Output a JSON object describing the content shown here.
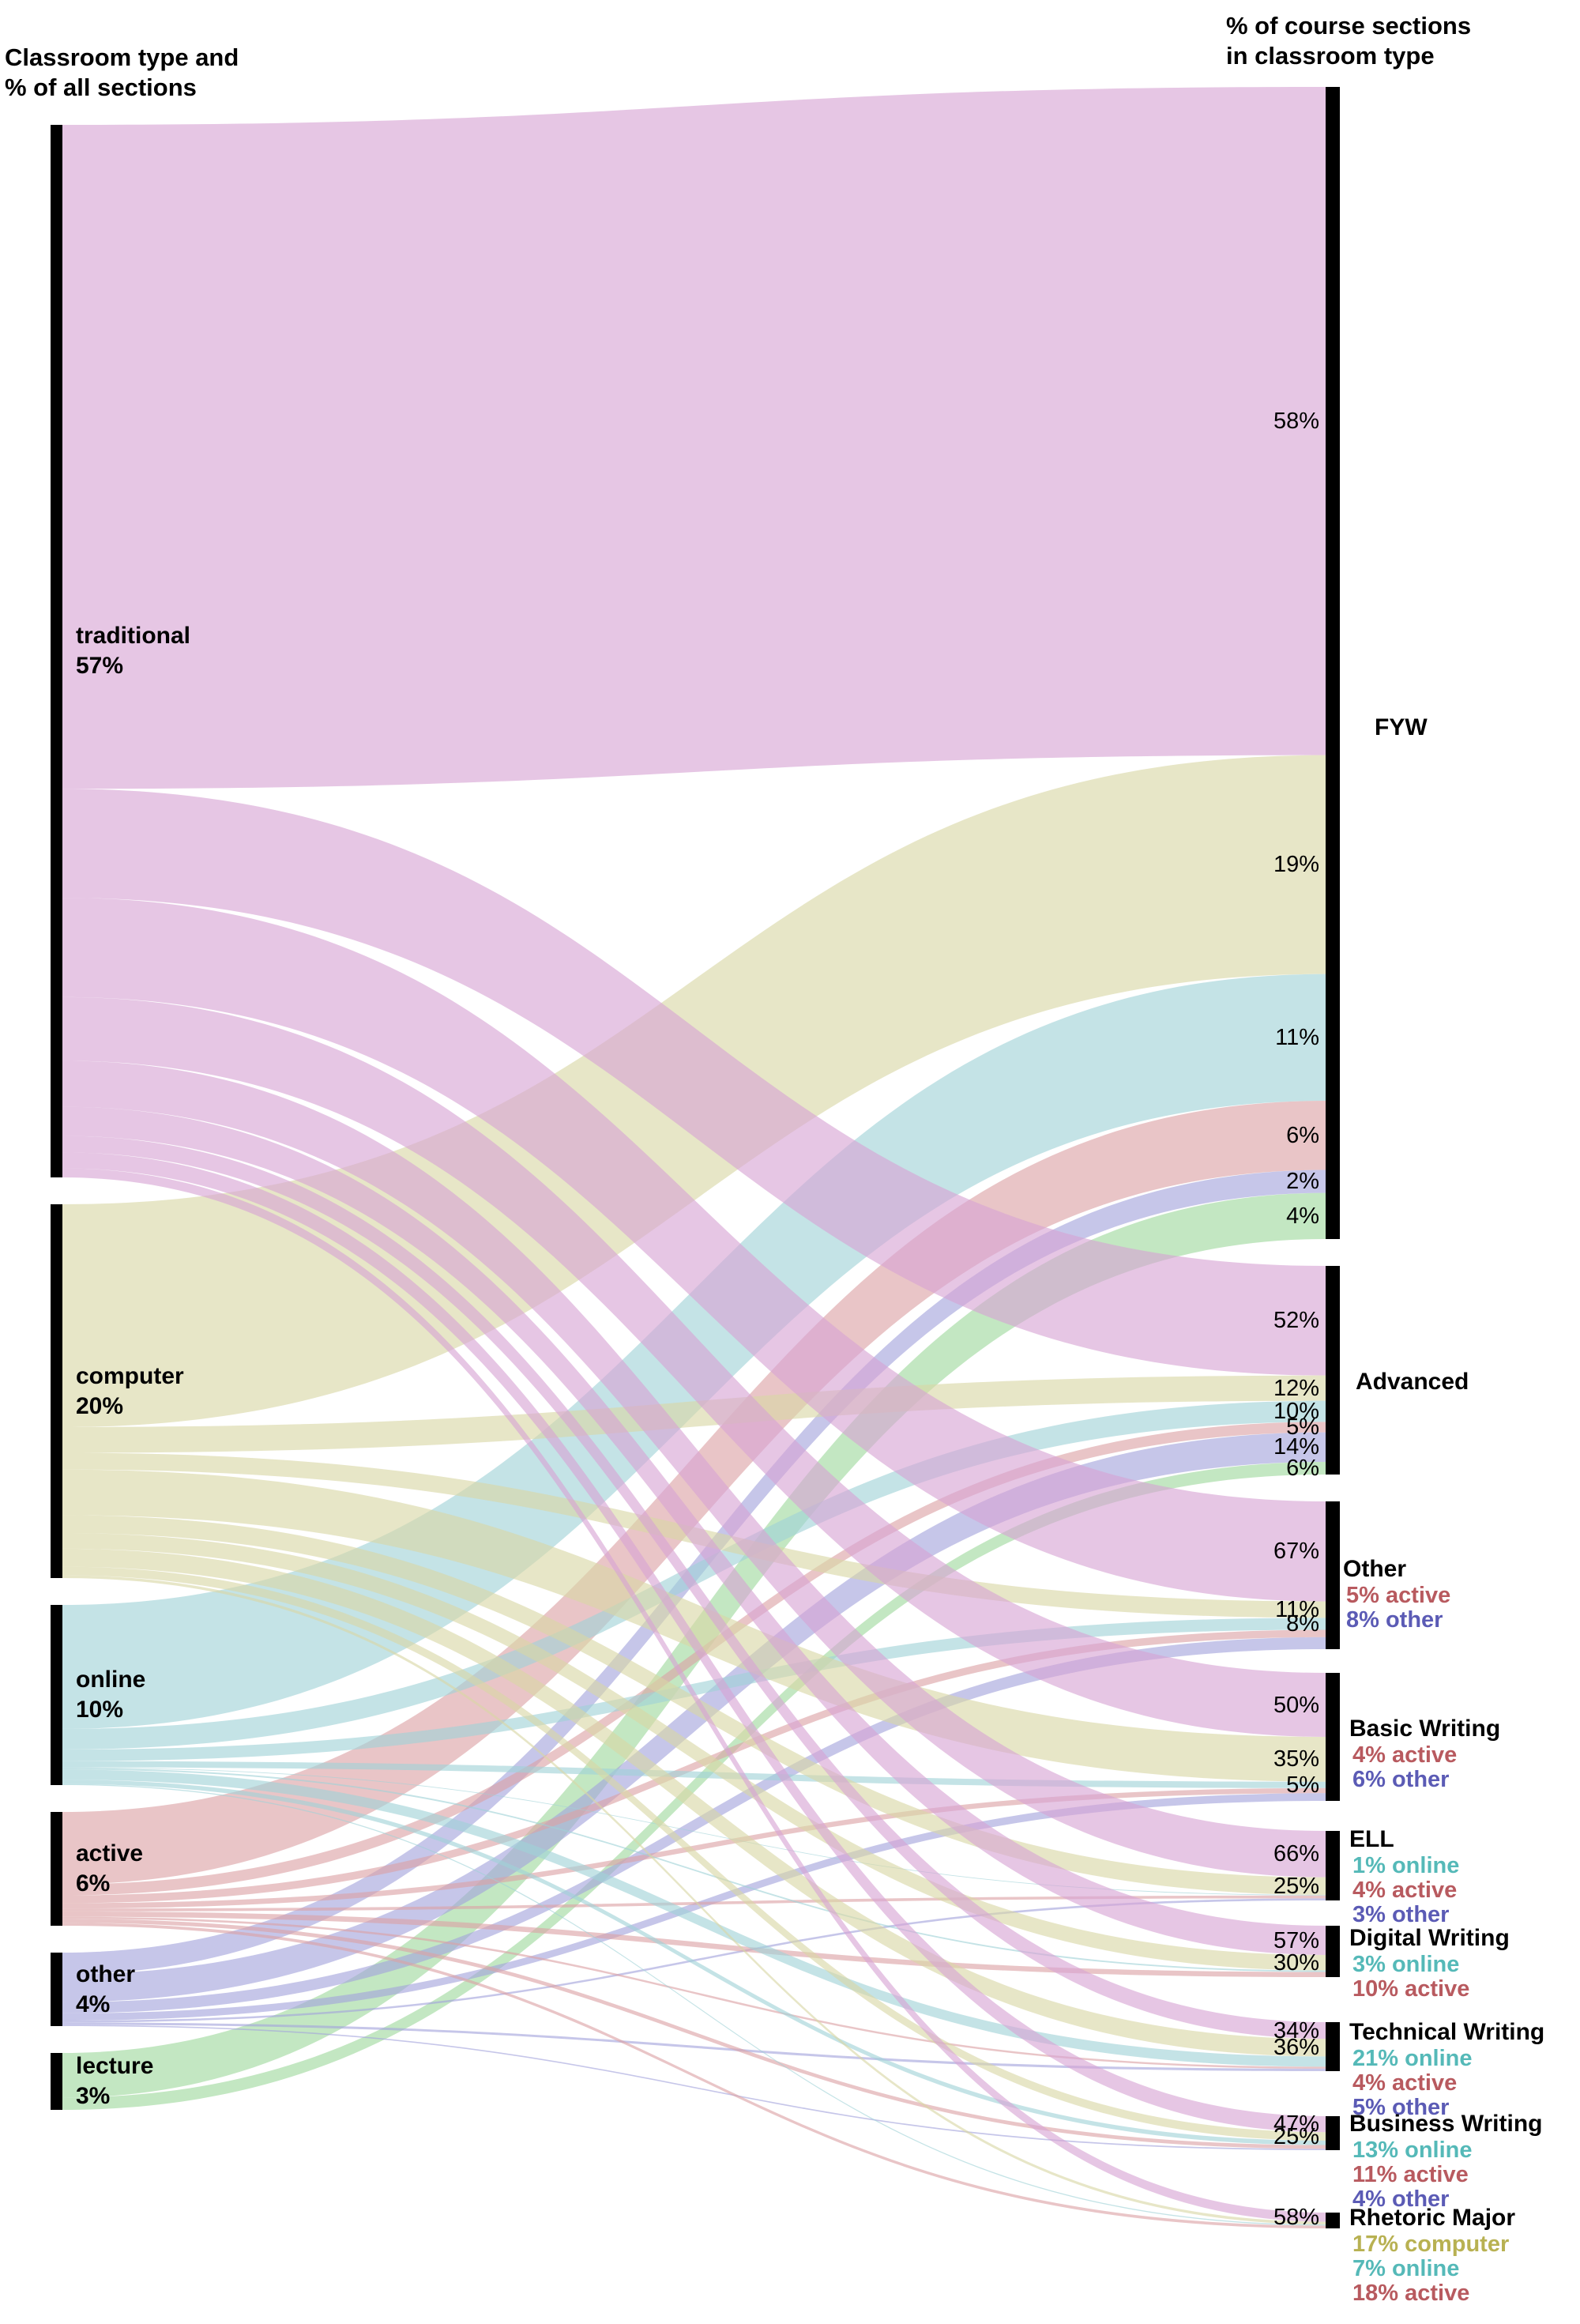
{
  "header_left": "Classroom type and\n% of all sections",
  "header_right": "% of course sections\nin classroom type",
  "chart_data": {
    "type": "sankey",
    "colors": {
      "traditional": "#d7a3d4",
      "computer": "#d8d7a5",
      "online": "#9fd2d6",
      "active": "#dca1a5",
      "other": "#a3a3dc",
      "lecture": "#9ed89d"
    },
    "label_colors": {
      "computer": "#b8b152",
      "online": "#55b9b8",
      "active": "#b85a5f",
      "other": "#5b5bb5"
    },
    "sources": [
      {
        "id": "traditional",
        "name": "traditional",
        "pct": "57%"
      },
      {
        "id": "computer",
        "name": "computer",
        "pct": "20%"
      },
      {
        "id": "online",
        "name": "online",
        "pct": "10%"
      },
      {
        "id": "active",
        "name": "active",
        "pct": "6%"
      },
      {
        "id": "other",
        "name": "other",
        "pct": "4%"
      },
      {
        "id": "lecture",
        "name": "lecture",
        "pct": "3%"
      }
    ],
    "targets": [
      {
        "id": "fyw",
        "name": "FYW",
        "bands": [
          {
            "source": "traditional",
            "label": "58%",
            "value": 58
          },
          {
            "source": "computer",
            "label": "19%",
            "value": 19
          },
          {
            "source": "online",
            "label": "11%",
            "value": 11
          },
          {
            "source": "active",
            "label": "6%",
            "value": 6
          },
          {
            "source": "other",
            "label": "2%",
            "value": 2
          },
          {
            "source": "lecture",
            "label": "4%",
            "value": 4
          }
        ],
        "extras": []
      },
      {
        "id": "advanced",
        "name": "Advanced",
        "bands": [
          {
            "source": "traditional",
            "label": "52%",
            "value": 52
          },
          {
            "source": "computer",
            "label": "12%",
            "value": 12
          },
          {
            "source": "online",
            "label": "10%",
            "value": 10
          },
          {
            "source": "active",
            "label": "5%",
            "value": 5
          },
          {
            "source": "other",
            "label": "14%",
            "value": 14
          },
          {
            "source": "lecture",
            "label": "6%",
            "value": 6
          }
        ],
        "extras": []
      },
      {
        "id": "other_course",
        "name": "Other",
        "bands": [
          {
            "source": "traditional",
            "label": "67%",
            "value": 67
          },
          {
            "source": "computer",
            "label": "11%",
            "value": 11
          },
          {
            "source": "online",
            "label": "8%",
            "value": 8
          },
          {
            "source": "active",
            "label": "",
            "value": 5
          },
          {
            "source": "other",
            "label": "",
            "value": 8
          }
        ],
        "extras": [
          {
            "source": "active",
            "text": "5% active"
          },
          {
            "source": "other",
            "text": "8% other"
          }
        ]
      },
      {
        "id": "basic",
        "name": "Basic Writing",
        "bands": [
          {
            "source": "traditional",
            "label": "50%",
            "value": 50
          },
          {
            "source": "computer",
            "label": "35%",
            "value": 35
          },
          {
            "source": "online",
            "label": "5%",
            "value": 5
          },
          {
            "source": "active",
            "label": "",
            "value": 4
          },
          {
            "source": "other",
            "label": "",
            "value": 6
          }
        ],
        "extras": [
          {
            "source": "active",
            "text": "4% active"
          },
          {
            "source": "other",
            "text": "6% other"
          }
        ]
      },
      {
        "id": "ell",
        "name": "ELL",
        "bands": [
          {
            "source": "traditional",
            "label": "66%",
            "value": 66
          },
          {
            "source": "computer",
            "label": "25%",
            "value": 25
          },
          {
            "source": "online",
            "label": "",
            "value": 1
          },
          {
            "source": "active",
            "label": "",
            "value": 4
          },
          {
            "source": "other",
            "label": "",
            "value": 3
          }
        ],
        "extras": [
          {
            "source": "online",
            "text": "1% online"
          },
          {
            "source": "active",
            "text": "4% active"
          },
          {
            "source": "other",
            "text": "3% other"
          }
        ]
      },
      {
        "id": "digital",
        "name": "Digital Writing",
        "bands": [
          {
            "source": "traditional",
            "label": "57%",
            "value": 57
          },
          {
            "source": "computer",
            "label": "30%",
            "value": 30
          },
          {
            "source": "online",
            "label": "",
            "value": 3
          },
          {
            "source": "active",
            "label": "",
            "value": 10
          }
        ],
        "extras": [
          {
            "source": "online",
            "text": "3% online"
          },
          {
            "source": "active",
            "text": "10% active"
          }
        ]
      },
      {
        "id": "technical",
        "name": "Technical Writing",
        "bands": [
          {
            "source": "traditional",
            "label": "34%",
            "value": 34
          },
          {
            "source": "computer",
            "label": "36%",
            "value": 36
          },
          {
            "source": "online",
            "label": "",
            "value": 21
          },
          {
            "source": "active",
            "label": "",
            "value": 4
          },
          {
            "source": "other",
            "label": "",
            "value": 5
          }
        ],
        "extras": [
          {
            "source": "online",
            "text": "21% online"
          },
          {
            "source": "active",
            "text": "4% active"
          },
          {
            "source": "other",
            "text": "5% other"
          }
        ]
      },
      {
        "id": "business",
        "name": "Business Writing",
        "bands": [
          {
            "source": "traditional",
            "label": "47%",
            "value": 47
          },
          {
            "source": "computer",
            "label": "25%",
            "value": 25
          },
          {
            "source": "online",
            "label": "",
            "value": 13
          },
          {
            "source": "active",
            "label": "",
            "value": 11
          },
          {
            "source": "other",
            "label": "",
            "value": 4
          }
        ],
        "extras": [
          {
            "source": "online",
            "text": "13% online"
          },
          {
            "source": "active",
            "text": "11% active"
          },
          {
            "source": "other",
            "text": "4% other"
          }
        ]
      },
      {
        "id": "rhetoric",
        "name": "Rhetoric Major",
        "bands": [
          {
            "source": "traditional",
            "label": "58%",
            "value": 58
          },
          {
            "source": "computer",
            "label": "",
            "value": 17
          },
          {
            "source": "online",
            "label": "",
            "value": 7
          },
          {
            "source": "active",
            "label": "",
            "value": 18
          }
        ],
        "extras": [
          {
            "source": "computer",
            "text": "17% computer"
          },
          {
            "source": "online",
            "text": "7% online"
          },
          {
            "source": "active",
            "text": "18% active"
          }
        ]
      }
    ]
  }
}
